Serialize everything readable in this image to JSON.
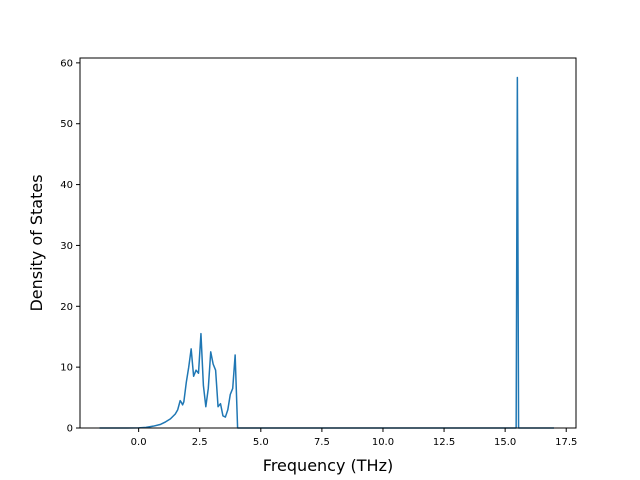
{
  "chart_data": {
    "type": "line",
    "title": "",
    "xlabel": "Frequency (THz)",
    "ylabel": "Density of States",
    "xlim": [
      -2.4,
      17.9
    ],
    "ylim": [
      0,
      60.8
    ],
    "xticks": [
      0.0,
      2.5,
      5.0,
      7.5,
      10.0,
      12.5,
      15.0,
      17.5
    ],
    "xtick_labels": [
      "0.0",
      "2.5",
      "5.0",
      "7.5",
      "10.0",
      "12.5",
      "15.0",
      "17.5"
    ],
    "yticks": [
      0,
      10,
      20,
      30,
      40,
      50,
      60
    ],
    "ytick_labels": [
      "0",
      "10",
      "20",
      "30",
      "40",
      "50",
      "60"
    ],
    "grid": false,
    "line_color": "#1f77b4",
    "series": [
      {
        "x": [
          -1.6,
          -0.5,
          0.0,
          0.3,
          0.6,
          0.9,
          1.1,
          1.3,
          1.5,
          1.6,
          1.7,
          1.75,
          1.8,
          1.85,
          1.95,
          2.05,
          2.15,
          2.25,
          2.35,
          2.45,
          2.55,
          2.65,
          2.75,
          2.85,
          2.95,
          3.05,
          3.15,
          3.25,
          3.35,
          3.45,
          3.55,
          3.65,
          3.75,
          3.85,
          3.95,
          4.05,
          4.2,
          5.0,
          10.0,
          15.0,
          15.3,
          15.4,
          15.45,
          15.5,
          15.55,
          16.0,
          17.0
        ],
        "y": [
          0,
          0,
          0.02,
          0.1,
          0.3,
          0.6,
          1.0,
          1.5,
          2.3,
          3.0,
          4.5,
          4.2,
          3.8,
          4.3,
          7.5,
          10.0,
          13.0,
          8.5,
          9.5,
          9.0,
          15.5,
          7.0,
          3.5,
          6.5,
          12.5,
          10.5,
          9.5,
          3.5,
          4.0,
          2.0,
          1.8,
          3.0,
          5.5,
          6.5,
          12.0,
          0,
          0,
          0,
          0,
          0,
          0,
          0,
          0,
          57.6,
          0,
          0,
          0
        ]
      }
    ]
  }
}
